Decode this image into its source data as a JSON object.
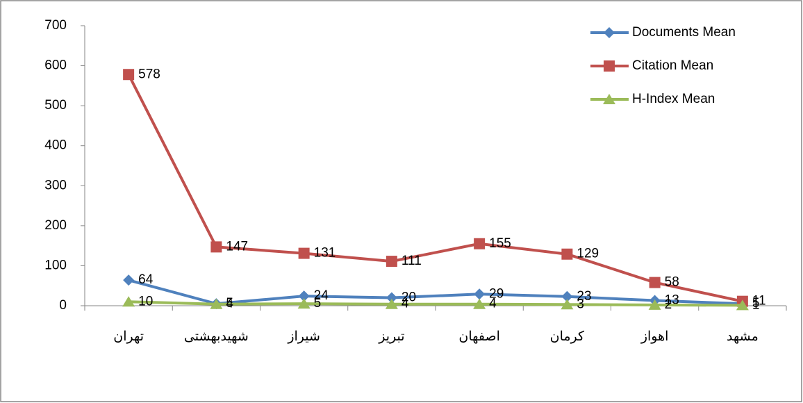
{
  "chart_data": {
    "type": "line",
    "categories": [
      "تهران",
      "شهیدبهشتی",
      "شیراز",
      "تبریز",
      "اصفهان",
      "کرمان",
      "اهواز",
      "مشهد"
    ],
    "series": [
      {
        "name": "Documents Mean",
        "color": "#4f81bd",
        "marker": "diamond",
        "values": [
          64,
          5,
          24,
          20,
          29,
          23,
          13,
          5
        ]
      },
      {
        "name": "Citation Mean",
        "color": "#c0504d",
        "marker": "square",
        "values": [
          578,
          147,
          131,
          111,
          155,
          129,
          58,
          11
        ]
      },
      {
        "name": "H-Index Mean",
        "color": "#9bbb59",
        "marker": "triangle",
        "values": [
          10,
          4,
          5,
          4,
          4,
          3,
          2,
          1
        ]
      }
    ],
    "ylim": [
      0,
      700
    ],
    "yticks": [
      0,
      100,
      200,
      300,
      400,
      500,
      600,
      700
    ],
    "grid": false,
    "legend": "top-right",
    "data_labels": true
  }
}
